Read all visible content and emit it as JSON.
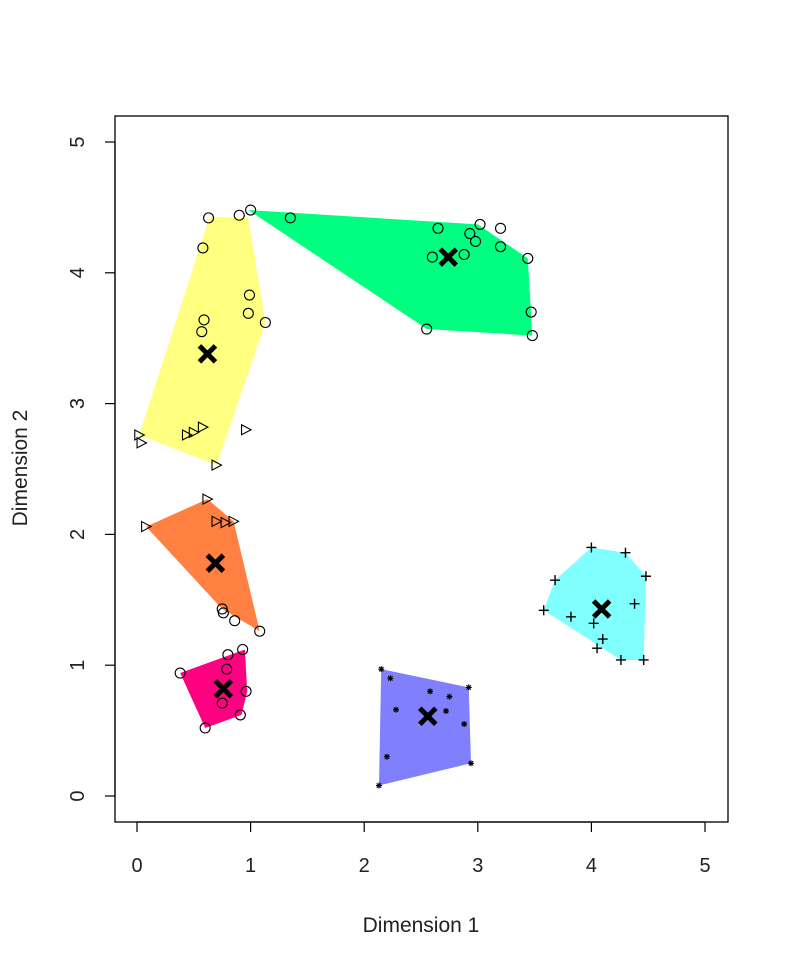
{
  "chart_data": {
    "type": "scatter",
    "title": "",
    "xlabel": "Dimension 1",
    "ylabel": "Dimension 2",
    "xlim": [
      -0.2,
      5.2
    ],
    "ylim": [
      -0.2,
      5.2
    ],
    "xticks": [
      "0",
      "1",
      "2",
      "3",
      "4",
      "5"
    ],
    "yticks": [
      "0",
      "1",
      "2",
      "3",
      "4",
      "5"
    ],
    "grid": false,
    "legend": "none",
    "clusters": [
      {
        "color": "#FFFF80",
        "hull": [
          [
            0.02,
            2.76
          ],
          [
            0.7,
            2.53
          ],
          [
            1.13,
            3.62
          ],
          [
            0.98,
            4.42
          ],
          [
            0.64,
            4.43
          ]
        ],
        "centroid": [
          0.62,
          3.38
        ],
        "points": [
          {
            "x": 0.02,
            "y": 2.76,
            "m": "tri"
          },
          {
            "x": 0.04,
            "y": 2.7,
            "m": "tri"
          },
          {
            "x": 0.44,
            "y": 2.76,
            "m": "tri"
          },
          {
            "x": 0.5,
            "y": 2.78,
            "m": "tri"
          },
          {
            "x": 0.58,
            "y": 2.82,
            "m": "tri"
          },
          {
            "x": 0.96,
            "y": 2.8,
            "m": "tri"
          },
          {
            "x": 0.7,
            "y": 2.53,
            "m": "tri"
          },
          {
            "x": 0.57,
            "y": 3.55,
            "m": "circ"
          },
          {
            "x": 0.59,
            "y": 3.64,
            "m": "circ"
          },
          {
            "x": 0.58,
            "y": 4.19,
            "m": "circ"
          },
          {
            "x": 0.63,
            "y": 4.42,
            "m": "circ"
          },
          {
            "x": 0.99,
            "y": 3.83,
            "m": "circ"
          },
          {
            "x": 0.98,
            "y": 3.69,
            "m": "circ"
          },
          {
            "x": 1.13,
            "y": 3.62,
            "m": "circ"
          }
        ]
      },
      {
        "color": "#00FF80",
        "hull": [
          [
            0.98,
            4.48
          ],
          [
            3.0,
            4.37
          ],
          [
            3.44,
            4.11
          ],
          [
            3.48,
            3.52
          ],
          [
            2.55,
            3.57
          ]
        ],
        "centroid": [
          2.74,
          4.12
        ],
        "points": [
          {
            "x": 0.9,
            "y": 4.44,
            "m": "circ"
          },
          {
            "x": 1.0,
            "y": 4.48,
            "m": "circ"
          },
          {
            "x": 1.35,
            "y": 4.42,
            "m": "circ"
          },
          {
            "x": 2.65,
            "y": 4.34,
            "m": "circ"
          },
          {
            "x": 2.6,
            "y": 4.12,
            "m": "circ"
          },
          {
            "x": 2.93,
            "y": 4.3,
            "m": "circ"
          },
          {
            "x": 2.98,
            "y": 4.24,
            "m": "circ"
          },
          {
            "x": 3.02,
            "y": 4.37,
            "m": "circ"
          },
          {
            "x": 2.88,
            "y": 4.14,
            "m": "circ"
          },
          {
            "x": 3.2,
            "y": 4.34,
            "m": "circ"
          },
          {
            "x": 3.2,
            "y": 4.2,
            "m": "circ"
          },
          {
            "x": 3.44,
            "y": 4.11,
            "m": "circ"
          },
          {
            "x": 3.47,
            "y": 3.7,
            "m": "circ"
          },
          {
            "x": 3.48,
            "y": 3.52,
            "m": "circ"
          },
          {
            "x": 2.55,
            "y": 3.57,
            "m": "circ"
          }
        ]
      },
      {
        "color": "#FF8040",
        "hull": [
          [
            0.08,
            2.06
          ],
          [
            0.62,
            2.27
          ],
          [
            0.85,
            2.1
          ],
          [
            1.08,
            1.26
          ],
          [
            0.75,
            1.43
          ]
        ],
        "centroid": [
          0.69,
          1.78
        ],
        "points": [
          {
            "x": 0.08,
            "y": 2.06,
            "m": "tri"
          },
          {
            "x": 0.62,
            "y": 2.27,
            "m": "tri"
          },
          {
            "x": 0.7,
            "y": 2.1,
            "m": "tri"
          },
          {
            "x": 0.78,
            "y": 2.09,
            "m": "tri"
          },
          {
            "x": 0.85,
            "y": 2.1,
            "m": "tri"
          },
          {
            "x": 0.75,
            "y": 1.43,
            "m": "circ"
          },
          {
            "x": 0.76,
            "y": 1.4,
            "m": "circ"
          },
          {
            "x": 0.86,
            "y": 1.34,
            "m": "circ"
          },
          {
            "x": 1.08,
            "y": 1.26,
            "m": "circ"
          }
        ]
      },
      {
        "color": "#FF0080",
        "hull": [
          [
            0.38,
            0.94
          ],
          [
            0.95,
            1.12
          ],
          [
            0.97,
            0.8
          ],
          [
            0.92,
            0.62
          ],
          [
            0.6,
            0.52
          ]
        ],
        "centroid": [
          0.76,
          0.82
        ],
        "points": [
          {
            "x": 0.38,
            "y": 0.94,
            "m": "circ"
          },
          {
            "x": 0.8,
            "y": 1.08,
            "m": "circ"
          },
          {
            "x": 0.93,
            "y": 1.12,
            "m": "circ"
          },
          {
            "x": 0.79,
            "y": 0.97,
            "m": "circ"
          },
          {
            "x": 0.96,
            "y": 0.8,
            "m": "circ"
          },
          {
            "x": 0.75,
            "y": 0.71,
            "m": "circ"
          },
          {
            "x": 0.91,
            "y": 0.62,
            "m": "circ"
          },
          {
            "x": 0.6,
            "y": 0.52,
            "m": "circ"
          }
        ]
      },
      {
        "color": "#8080FF",
        "hull": [
          [
            2.15,
            0.97
          ],
          [
            2.92,
            0.83
          ],
          [
            2.94,
            0.25
          ],
          [
            2.13,
            0.08
          ]
        ],
        "centroid": [
          2.56,
          0.61
        ],
        "points": [
          {
            "x": 2.15,
            "y": 0.97,
            "m": "star"
          },
          {
            "x": 2.23,
            "y": 0.9,
            "m": "star"
          },
          {
            "x": 2.28,
            "y": 0.66,
            "m": "star"
          },
          {
            "x": 2.58,
            "y": 0.8,
            "m": "star"
          },
          {
            "x": 2.75,
            "y": 0.76,
            "m": "star"
          },
          {
            "x": 2.92,
            "y": 0.83,
            "m": "star"
          },
          {
            "x": 2.72,
            "y": 0.65,
            "m": "star"
          },
          {
            "x": 2.88,
            "y": 0.55,
            "m": "star"
          },
          {
            "x": 2.2,
            "y": 0.3,
            "m": "star"
          },
          {
            "x": 2.94,
            "y": 0.25,
            "m": "star"
          },
          {
            "x": 2.13,
            "y": 0.08,
            "m": "star"
          }
        ]
      },
      {
        "color": "#80FFFF",
        "hull": [
          [
            3.58,
            1.42
          ],
          [
            3.68,
            1.65
          ],
          [
            4.0,
            1.9
          ],
          [
            4.3,
            1.86
          ],
          [
            4.48,
            1.68
          ],
          [
            4.46,
            1.04
          ],
          [
            4.26,
            1.04
          ]
        ],
        "centroid": [
          4.09,
          1.43
        ],
        "points": [
          {
            "x": 3.58,
            "y": 1.42,
            "m": "plus"
          },
          {
            "x": 3.68,
            "y": 1.65,
            "m": "plus"
          },
          {
            "x": 4.0,
            "y": 1.9,
            "m": "plus"
          },
          {
            "x": 4.3,
            "y": 1.86,
            "m": "plus"
          },
          {
            "x": 4.48,
            "y": 1.68,
            "m": "plus"
          },
          {
            "x": 3.82,
            "y": 1.37,
            "m": "plus"
          },
          {
            "x": 4.02,
            "y": 1.32,
            "m": "plus"
          },
          {
            "x": 4.38,
            "y": 1.47,
            "m": "plus"
          },
          {
            "x": 4.1,
            "y": 1.2,
            "m": "plus"
          },
          {
            "x": 4.05,
            "y": 1.13,
            "m": "plus"
          },
          {
            "x": 4.26,
            "y": 1.04,
            "m": "plus"
          },
          {
            "x": 4.46,
            "y": 1.04,
            "m": "plus"
          }
        ]
      }
    ]
  }
}
